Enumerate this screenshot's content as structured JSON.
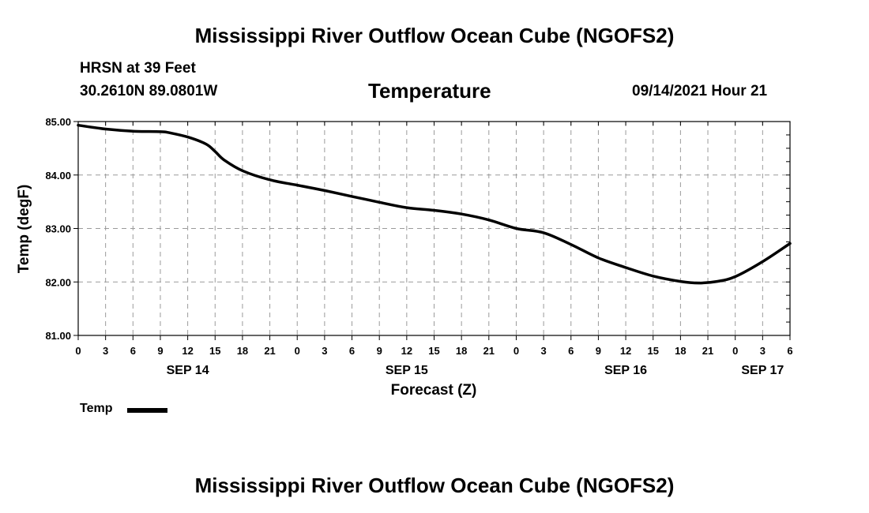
{
  "page": {
    "title_top": "Mississippi River Outflow Ocean Cube (NGOFS2)",
    "title_bottom": "Mississippi River Outflow Ocean Cube (NGOFS2)",
    "station": "HRSN at 39 Feet",
    "coords": "30.2610N  89.0801W",
    "datetime": "09/14/2021 Hour 21"
  },
  "chart_data": {
    "type": "line",
    "title": "Temperature",
    "xlabel": "Forecast (Z)",
    "ylabel": "Temp (degF)",
    "ylim": [
      81.0,
      85.0
    ],
    "xlim_hours": [
      0,
      78
    ],
    "y_ticks": [
      "81.00",
      "82.00",
      "83.00",
      "84.00",
      "85.00"
    ],
    "x_tick_labels": [
      "0",
      "3",
      "6",
      "9",
      "12",
      "15",
      "18",
      "21",
      "0",
      "3",
      "6",
      "9",
      "12",
      "15",
      "18",
      "21",
      "0",
      "3",
      "6",
      "9",
      "12",
      "15",
      "18",
      "21",
      "0",
      "3",
      "6"
    ],
    "date_labels": [
      {
        "label": "SEP 14",
        "hour": 12
      },
      {
        "label": "SEP 15",
        "hour": 36
      },
      {
        "label": "SEP 16",
        "hour": 60
      },
      {
        "label": "SEP 17",
        "hour": 75
      }
    ],
    "grid": true,
    "legend": [
      {
        "name": "Temp",
        "color": "#000000"
      }
    ],
    "series": [
      {
        "name": "Temp",
        "hours": [
          0,
          3,
          6,
          9,
          10,
          12,
          14,
          15,
          16,
          18,
          21,
          24,
          27,
          30,
          33,
          36,
          39,
          42,
          45,
          48,
          51,
          54,
          57,
          60,
          63,
          66,
          68,
          70,
          72,
          75,
          78
        ],
        "values": [
          84.93,
          84.86,
          84.82,
          84.81,
          84.79,
          84.71,
          84.58,
          84.44,
          84.28,
          84.08,
          83.91,
          83.81,
          83.71,
          83.6,
          83.49,
          83.39,
          83.34,
          83.27,
          83.16,
          83.0,
          82.92,
          82.7,
          82.45,
          82.27,
          82.11,
          82.01,
          81.98,
          82.01,
          82.1,
          82.38,
          82.72
        ]
      }
    ]
  }
}
